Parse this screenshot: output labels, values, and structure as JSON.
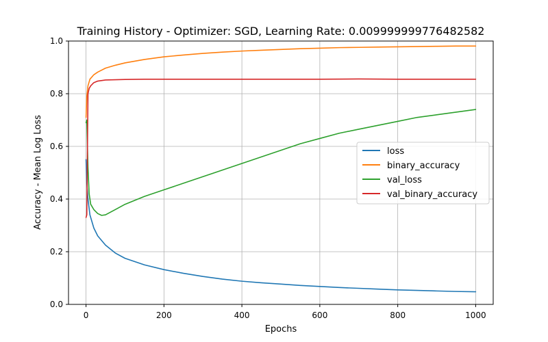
{
  "chart_data": {
    "type": "line",
    "title": "Training History - Optimizer: SGD, Learning Rate: 0.009999999776482582",
    "xlabel": "Epochs",
    "ylabel": "Accuracy - Mean Log Loss",
    "xlim": [
      -45,
      1045
    ],
    "ylim": [
      0.0,
      1.0
    ],
    "xticks": [
      0,
      200,
      400,
      600,
      800,
      1000
    ],
    "xtick_labels": [
      "0",
      "200",
      "400",
      "600",
      "800",
      "1000"
    ],
    "yticks": [
      0.0,
      0.2,
      0.4,
      0.6,
      0.8,
      1.0
    ],
    "ytick_labels": [
      "0.0",
      "0.2",
      "0.4",
      "0.6",
      "0.8",
      "1.0"
    ],
    "grid": true,
    "legend_position": "center-right",
    "series": [
      {
        "name": "loss",
        "color": "#1f77b4",
        "x": [
          0,
          2,
          5,
          10,
          20,
          30,
          50,
          75,
          100,
          150,
          200,
          250,
          300,
          350,
          400,
          450,
          500,
          550,
          600,
          650,
          700,
          750,
          800,
          850,
          900,
          950,
          1000
        ],
        "y": [
          0.55,
          0.46,
          0.4,
          0.34,
          0.29,
          0.26,
          0.225,
          0.195,
          0.175,
          0.15,
          0.132,
          0.118,
          0.106,
          0.096,
          0.088,
          0.082,
          0.077,
          0.072,
          0.068,
          0.064,
          0.061,
          0.058,
          0.055,
          0.053,
          0.051,
          0.049,
          0.048
        ]
      },
      {
        "name": "binary_accuracy",
        "color": "#ff7f0e",
        "x": [
          0,
          2,
          5,
          10,
          20,
          30,
          50,
          75,
          100,
          150,
          200,
          250,
          300,
          350,
          400,
          450,
          500,
          550,
          600,
          650,
          700,
          750,
          800,
          850,
          900,
          950,
          1000
        ],
        "y": [
          0.71,
          0.79,
          0.83,
          0.855,
          0.872,
          0.882,
          0.897,
          0.908,
          0.917,
          0.93,
          0.94,
          0.947,
          0.953,
          0.958,
          0.962,
          0.965,
          0.968,
          0.971,
          0.973,
          0.975,
          0.976,
          0.977,
          0.978,
          0.979,
          0.98,
          0.981,
          0.981
        ]
      },
      {
        "name": "val_loss",
        "color": "#2ca02c",
        "x": [
          0,
          2,
          5,
          8,
          12,
          20,
          30,
          40,
          50,
          75,
          100,
          150,
          200,
          250,
          300,
          350,
          400,
          450,
          500,
          550,
          600,
          650,
          700,
          750,
          800,
          850,
          900,
          950,
          1000
        ],
        "y": [
          0.69,
          0.7,
          0.52,
          0.42,
          0.38,
          0.36,
          0.345,
          0.338,
          0.34,
          0.36,
          0.38,
          0.41,
          0.435,
          0.46,
          0.485,
          0.51,
          0.535,
          0.56,
          0.585,
          0.61,
          0.63,
          0.65,
          0.665,
          0.68,
          0.695,
          0.71,
          0.72,
          0.73,
          0.74
        ]
      },
      {
        "name": "val_binary_accuracy",
        "color": "#d62728",
        "x": [
          0,
          2,
          5,
          8,
          12,
          20,
          30,
          50,
          75,
          100,
          150,
          200,
          300,
          400,
          500,
          600,
          700,
          800,
          900,
          1000
        ],
        "y": [
          0.33,
          0.34,
          0.8,
          0.82,
          0.83,
          0.842,
          0.848,
          0.852,
          0.853,
          0.854,
          0.855,
          0.855,
          0.855,
          0.855,
          0.855,
          0.855,
          0.856,
          0.855,
          0.855,
          0.855
        ]
      }
    ]
  }
}
